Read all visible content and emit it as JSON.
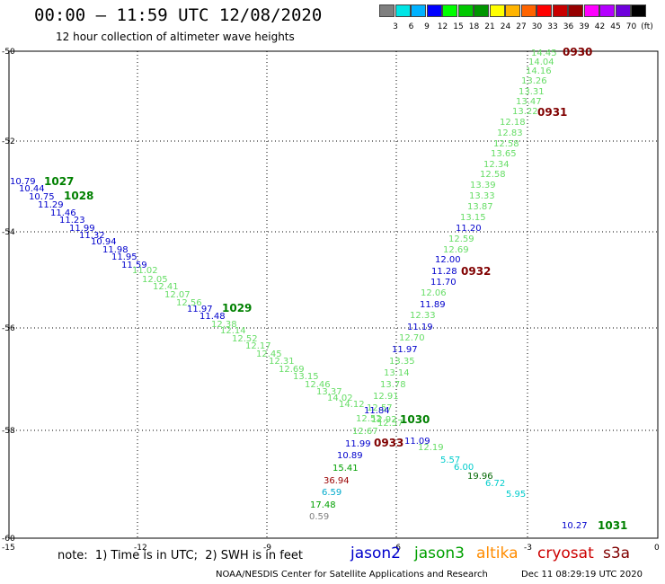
{
  "header": {
    "title": "00:00 – 11:59 UTC 12/08/2020",
    "subtitle": "12 hour collection of altimeter wave heights"
  },
  "colorbar": {
    "colors": [
      "#7f7f7f",
      "#00e5e5",
      "#00b2ff",
      "#0000ff",
      "#00ff00",
      "#00c800",
      "#009600",
      "#ffff00",
      "#ffb400",
      "#ff6400",
      "#ff0000",
      "#c80000",
      "#960000",
      "#ff00ff",
      "#b400ff",
      "#6e00dc",
      "#000000"
    ],
    "labels": [
      "3",
      "6",
      "9",
      "12",
      "15",
      "18",
      "21",
      "24",
      "27",
      "30",
      "33",
      "36",
      "39",
      "42",
      "45",
      "70",
      "(ft)"
    ]
  },
  "axes": {
    "xticks": [
      "-15",
      "-12",
      "-9",
      "-6",
      "-3",
      "0"
    ],
    "yticks": [
      "-50",
      "-52",
      "-54",
      "-56",
      "-58",
      "-60"
    ]
  },
  "footer": {
    "note": "note:  1) Time is in UTC;  2) SWH is in feet",
    "satellites": [
      {
        "name": "jason2",
        "color": "#0000cc"
      },
      {
        "name": "jason3",
        "color": "#00a000"
      },
      {
        "name": "altika",
        "color": "#ff8c00"
      },
      {
        "name": "cryosat",
        "color": "#cc0000"
      },
      {
        "name": "s3a",
        "color": "#800000"
      }
    ],
    "agency": "NOAA/NESDIS Center for Satellite Applications and Research",
    "timestamp": "Dec 11 08:29:19 UTC 2020"
  },
  "track_labels": [
    {
      "text": "0930",
      "color": "#800000"
    },
    {
      "text": "0931",
      "color": "#800000"
    },
    {
      "text": "0932",
      "color": "#800000"
    },
    {
      "text": "0933",
      "color": "#800000"
    },
    {
      "text": "1027",
      "color": "#008000"
    },
    {
      "text": "1028",
      "color": "#008000"
    },
    {
      "text": "1029",
      "color": "#008000"
    },
    {
      "text": "1030",
      "color": "#008000"
    },
    {
      "text": "1031",
      "color": "#008000"
    }
  ],
  "swh_labels": [
    {
      "text": "14.45",
      "c": "#66dd66"
    },
    {
      "text": "14.04",
      "c": "#66dd66"
    },
    {
      "text": "14.16",
      "c": "#66dd66"
    },
    {
      "text": "13.26",
      "c": "#66dd66"
    },
    {
      "text": "13.31",
      "c": "#66dd66"
    },
    {
      "text": "13.47",
      "c": "#66dd66"
    },
    {
      "text": "13.22",
      "c": "#66dd66"
    },
    {
      "text": "12.18",
      "c": "#66dd66"
    },
    {
      "text": "12.83",
      "c": "#66dd66"
    },
    {
      "text": "12.58",
      "c": "#66dd66"
    },
    {
      "text": "13.65",
      "c": "#66dd66"
    },
    {
      "text": "12.34",
      "c": "#66dd66"
    },
    {
      "text": "12.58",
      "c": "#66dd66"
    },
    {
      "text": "13.39",
      "c": "#66dd66"
    },
    {
      "text": "13.33",
      "c": "#66dd66"
    },
    {
      "text": "13.87",
      "c": "#66dd66"
    },
    {
      "text": "13.15",
      "c": "#66dd66"
    },
    {
      "text": "11.20",
      "c": "#0000cc"
    },
    {
      "text": "12.59",
      "c": "#66dd66"
    },
    {
      "text": "12.69",
      "c": "#66dd66"
    },
    {
      "text": "12.00",
      "c": "#0000cc"
    },
    {
      "text": "11.28",
      "c": "#0000cc"
    },
    {
      "text": "11.70",
      "c": "#0000cc"
    },
    {
      "text": "12.06",
      "c": "#66dd66"
    },
    {
      "text": "11.89",
      "c": "#0000cc"
    },
    {
      "text": "12.33",
      "c": "#66dd66"
    },
    {
      "text": "11.19",
      "c": "#0000cc"
    },
    {
      "text": "12.70",
      "c": "#66dd66"
    },
    {
      "text": "11.97",
      "c": "#0000cc"
    },
    {
      "text": "13.35",
      "c": "#66dd66"
    },
    {
      "text": "13.14",
      "c": "#66dd66"
    },
    {
      "text": "13.78",
      "c": "#66dd66"
    },
    {
      "text": "12.91",
      "c": "#66dd66"
    },
    {
      "text": "12.57",
      "c": "#66dd66"
    },
    {
      "text": "11.84",
      "c": "#0000cc"
    },
    {
      "text": "12.52",
      "c": "#66dd66"
    },
    {
      "text": "12.92",
      "c": "#66dd66"
    },
    {
      "text": "12.57",
      "c": "#66dd66"
    },
    {
      "text": "12.67",
      "c": "#66dd66"
    },
    {
      "text": "11.99",
      "c": "#0000cc"
    },
    {
      "text": "11.09",
      "c": "#0000cc"
    },
    {
      "text": "12.19",
      "c": "#66dd66"
    },
    {
      "text": "10.89",
      "c": "#0000cc"
    },
    {
      "text": "5.57",
      "c": "#00cccc"
    },
    {
      "text": "6.00",
      "c": "#00cccc"
    },
    {
      "text": "15.41",
      "c": "#00a000"
    },
    {
      "text": "19.96",
      "c": "#006600"
    },
    {
      "text": "6.72",
      "c": "#00cccc"
    },
    {
      "text": "36.94",
      "c": "#990000"
    },
    {
      "text": "5.95",
      "c": "#00cccc"
    },
    {
      "text": "6.59",
      "c": "#00aacc"
    },
    {
      "text": "17.48",
      "c": "#00a000"
    },
    {
      "text": "0.59",
      "c": "#808080"
    },
    {
      "text": "10.27",
      "c": "#0000cc"
    },
    {
      "text": "10.79",
      "c": "#0000cc"
    },
    {
      "text": "10.44",
      "c": "#0000cc"
    },
    {
      "text": "10.75",
      "c": "#0000cc"
    },
    {
      "text": "11.29",
      "c": "#0000cc"
    },
    {
      "text": "11.46",
      "c": "#0000cc"
    },
    {
      "text": "11.23",
      "c": "#0000cc"
    },
    {
      "text": "11.99",
      "c": "#0000cc"
    },
    {
      "text": "11.32",
      "c": "#0000cc"
    },
    {
      "text": "10.94",
      "c": "#0000cc"
    },
    {
      "text": "11.98",
      "c": "#0000cc"
    },
    {
      "text": "11.95",
      "c": "#0000cc"
    },
    {
      "text": "11.59",
      "c": "#0000cc"
    },
    {
      "text": "11.02",
      "c": "#66dd66"
    },
    {
      "text": "12.05",
      "c": "#66dd66"
    },
    {
      "text": "12.41",
      "c": "#66dd66"
    },
    {
      "text": "12.07",
      "c": "#66dd66"
    },
    {
      "text": "12.56",
      "c": "#66dd66"
    },
    {
      "text": "11.97",
      "c": "#0000cc"
    },
    {
      "text": "11.48",
      "c": "#0000cc"
    },
    {
      "text": "12.38",
      "c": "#66dd66"
    },
    {
      "text": "12.14",
      "c": "#66dd66"
    },
    {
      "text": "12.52",
      "c": "#66dd66"
    },
    {
      "text": "12.17",
      "c": "#66dd66"
    },
    {
      "text": "12.45",
      "c": "#66dd66"
    },
    {
      "text": "12.31",
      "c": "#66dd66"
    },
    {
      "text": "12.69",
      "c": "#66dd66"
    },
    {
      "text": "13.15",
      "c": "#66dd66"
    },
    {
      "text": "12.46",
      "c": "#66dd66"
    },
    {
      "text": "13.37",
      "c": "#66dd66"
    },
    {
      "text": "14.02",
      "c": "#66dd66"
    },
    {
      "text": "14.12",
      "c": "#66dd66"
    }
  ]
}
